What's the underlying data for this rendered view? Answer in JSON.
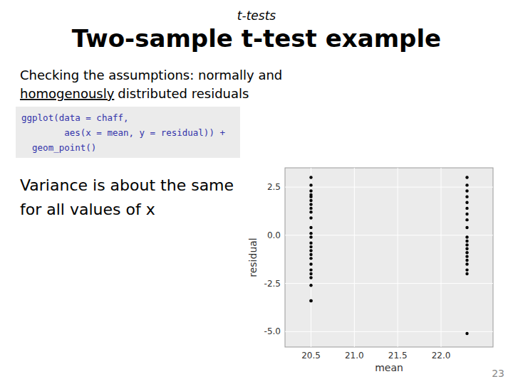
{
  "chart_data": {
    "type": "scatter",
    "title": "Two-sample t-test example",
    "annotations": [
      "t-tests",
      "Checking the assumptions: normally and",
      "homogenously",
      "distributed residuals",
      "ggplot(data = chaff,",
      "        aes(x = mean, y = residual)) +",
      "  geom_point()",
      "Variance is about the same",
      "for all values of x",
      "23"
    ],
    "x_label": "mean",
    "y_label": "residual",
    "series": [
      {
        "color": "#000000",
        "marker": "circle",
        "x": [
          20.5,
          20.5,
          20.5,
          20.5,
          20.5,
          20.5,
          20.5,
          20.5,
          20.5,
          20.5,
          20.5,
          20.5,
          20.5,
          20.5,
          20.5,
          20.5,
          20.5,
          20.5,
          20.5,
          20.5,
          20.5,
          20.5,
          20.5,
          20.5,
          20.5
        ],
        "values": [
          3.0,
          2.6,
          2.3,
          2.1,
          2.0,
          1.8,
          1.6,
          1.4,
          1.2,
          0.9,
          0.4,
          0.1,
          -0.1,
          -0.4,
          -0.6,
          -0.8,
          -1.0,
          -1.2,
          -1.5,
          -1.8,
          -2.0,
          -2.2,
          -2.6,
          -3.4,
          -3.4
        ]
      },
      {
        "color": "#000000",
        "marker": "circle",
        "x": [
          22.3,
          22.3,
          22.3,
          22.3,
          22.3,
          22.3,
          22.3,
          22.3,
          22.3,
          22.3,
          22.3,
          22.3,
          22.3,
          22.3,
          22.3,
          22.3,
          22.3,
          22.3,
          22.3,
          22.3
        ],
        "values": [
          3.0,
          2.6,
          2.3,
          2.0,
          1.7,
          1.4,
          1.1,
          0.8,
          0.4,
          -0.1,
          -0.3,
          -0.5,
          -0.7,
          -0.9,
          -1.1,
          -1.3,
          -1.5,
          -1.8,
          -2.0,
          -5.1
        ]
      }
    ],
    "xlim": [
      20.2,
      22.6
    ],
    "ylim": [
      -5.8,
      3.5
    ],
    "xticks": [
      20.5,
      {
        "value": 21,
        "label": "21.0"
      },
      21.5,
      {
        "value": 22,
        "label": "22.0"
      }
    ],
    "yticks": [
      2.5,
      {
        "value": 0,
        "label": "0.0"
      },
      -2.5,
      {
        "value": -5,
        "label": "-5.0"
      }
    ],
    "grid": true
  }
}
